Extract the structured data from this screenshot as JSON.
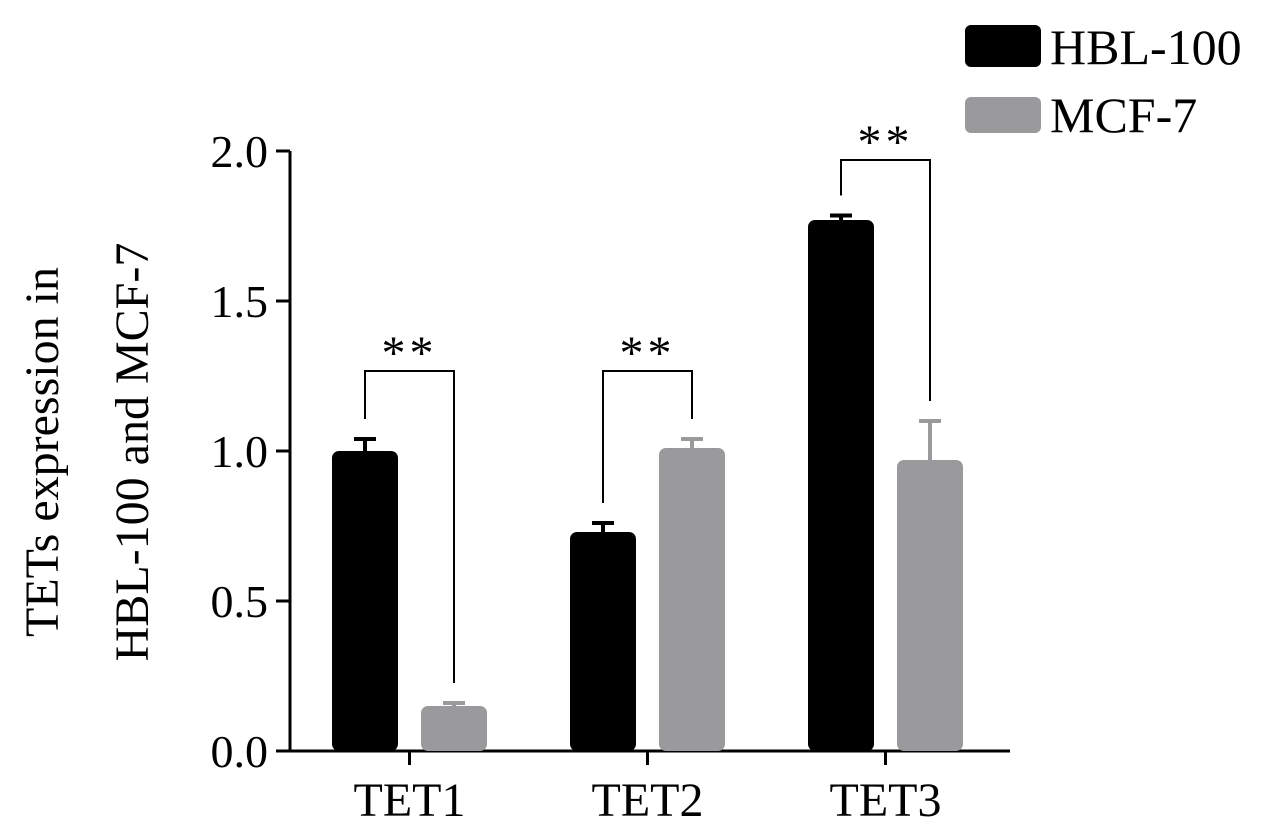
{
  "chart_data": {
    "type": "bar",
    "title": "",
    "xlabel": "",
    "ylabel_lines": [
      "TETs expression in",
      "HBL-100 and MCF-7"
    ],
    "ylim": [
      0,
      2.0
    ],
    "yticks": [
      "0.0",
      "0.5",
      "1.0",
      "1.5",
      "2.0"
    ],
    "categories": [
      "TET1",
      "TET2",
      "TET3"
    ],
    "series": [
      {
        "name": "HBL-100",
        "color": "#000000",
        "values": [
          1.0,
          0.73,
          1.77
        ],
        "errors": [
          0.04,
          0.03,
          0.015
        ]
      },
      {
        "name": "MCF-7",
        "color": "#9a9a9c",
        "values": [
          0.15,
          1.01,
          0.97
        ],
        "errors": [
          0.01,
          0.03,
          0.13
        ]
      }
    ],
    "significance": [
      {
        "category": "TET1",
        "label": "**"
      },
      {
        "category": "TET2",
        "label": "**"
      },
      {
        "category": "TET3",
        "label": "**"
      }
    ],
    "legend_position": "top-right",
    "grid": false
  }
}
